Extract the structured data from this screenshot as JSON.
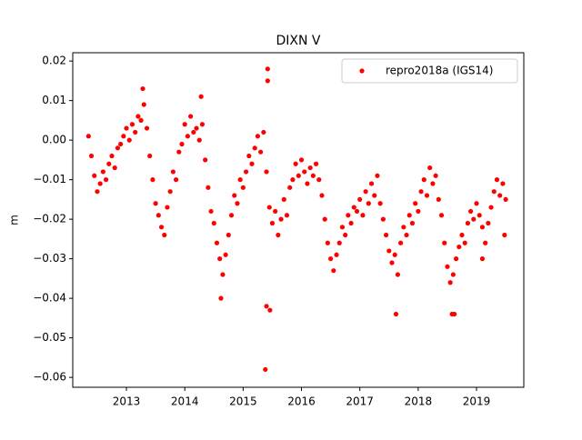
{
  "chart_data": {
    "type": "scatter",
    "title": "DIXN V",
    "y_label": "m",
    "legend": "upper right",
    "xlim": [
      2012.08,
      2019.81
    ],
    "xticks": [
      2013,
      2014,
      2015,
      2016,
      2017,
      2018,
      2019
    ],
    "ylim": [
      -0.0625,
      0.0221
    ],
    "yticks": [
      0.02,
      0.01,
      {
        "value": 0,
        "label": "0.00"
      },
      {
        "value": -0.01,
        "label": "−0.01"
      },
      {
        "value": -0.02,
        "label": "−0.02"
      },
      {
        "value": -0.03,
        "label": "−0.03"
      },
      {
        "value": -0.04,
        "label": "−0.04"
      },
      {
        "value": -0.05,
        "label": "−0.05"
      },
      {
        "value": -0.06,
        "label": "−0.06"
      }
    ],
    "series": [
      {
        "name": "repro2018a (IGS14)",
        "color": "#ff0000",
        "x": [
          2012.35,
          2012.4,
          2012.45,
          2012.5,
          2012.55,
          2012.6,
          2012.65,
          2012.7,
          2012.75,
          2012.8,
          2012.85,
          2012.9,
          2012.95,
          2013.0,
          2013.05,
          2013.1,
          2013.15,
          2013.2,
          2013.25,
          2013.3,
          2013.35,
          2013.4,
          2013.45,
          2013.5,
          2013.55,
          2013.6,
          2013.65,
          2013.7,
          2013.75,
          2013.8,
          2013.85,
          2013.9,
          2013.95,
          2014.0,
          2014.05,
          2014.1,
          2014.15,
          2014.2,
          2014.25,
          2014.3,
          2014.35,
          2014.4,
          2014.45,
          2014.5,
          2014.55,
          2014.6,
          2014.65,
          2014.7,
          2014.75,
          2014.8,
          2014.85,
          2014.9,
          2014.95,
          2015.0,
          2015.05,
          2015.1,
          2015.15,
          2015.2,
          2015.25,
          2015.3,
          2015.35,
          2015.4,
          2015.45,
          2015.5,
          2015.55,
          2015.6,
          2015.65,
          2015.7,
          2015.75,
          2015.8,
          2015.85,
          2015.9,
          2015.95,
          2016.0,
          2016.05,
          2016.1,
          2016.15,
          2016.2,
          2016.25,
          2016.3,
          2016.35,
          2016.4,
          2016.45,
          2016.5,
          2016.55,
          2016.6,
          2016.65,
          2016.7,
          2016.75,
          2016.8,
          2016.85,
          2016.9,
          2016.95,
          2017.0,
          2017.05,
          2017.1,
          2017.15,
          2017.2,
          2017.25,
          2017.3,
          2017.35,
          2017.4,
          2017.45,
          2017.5,
          2017.55,
          2017.6,
          2017.65,
          2017.7,
          2017.75,
          2017.8,
          2017.85,
          2017.9,
          2017.95,
          2018.0,
          2018.05,
          2018.1,
          2018.15,
          2018.2,
          2018.25,
          2018.3,
          2018.35,
          2018.4,
          2018.45,
          2018.5,
          2018.55,
          2018.6,
          2018.65,
          2018.7,
          2018.75,
          2018.8,
          2018.85,
          2018.9,
          2018.95,
          2019.0,
          2019.05,
          2019.1,
          2019.15,
          2019.2,
          2019.25,
          2019.3,
          2019.35,
          2019.4,
          2019.45,
          2019.5,
          2013.28,
          2014.28,
          2015.42,
          2015.42,
          2015.38,
          2015.4,
          2015.46,
          2014.62,
          2017.62,
          2018.58,
          2018.62,
          2019.1,
          2019.48
        ],
        "values": [
          0.001,
          -0.004,
          -0.009,
          -0.013,
          -0.011,
          -0.008,
          -0.01,
          -0.006,
          -0.004,
          -0.007,
          -0.002,
          -0.001,
          0.001,
          0.003,
          0.0,
          0.004,
          0.002,
          0.006,
          0.005,
          0.009,
          0.003,
          -0.004,
          -0.01,
          -0.016,
          -0.019,
          -0.022,
          -0.024,
          -0.017,
          -0.013,
          -0.008,
          -0.01,
          -0.003,
          -0.001,
          0.004,
          0.001,
          0.006,
          0.002,
          0.003,
          0.0,
          0.004,
          -0.005,
          -0.012,
          -0.018,
          -0.021,
          -0.026,
          -0.03,
          -0.034,
          -0.029,
          -0.024,
          -0.019,
          -0.014,
          -0.016,
          -0.01,
          -0.012,
          -0.008,
          -0.004,
          -0.006,
          -0.002,
          0.001,
          -0.003,
          0.002,
          -0.008,
          -0.017,
          -0.021,
          -0.018,
          -0.024,
          -0.02,
          -0.015,
          -0.019,
          -0.012,
          -0.01,
          -0.006,
          -0.009,
          -0.005,
          -0.008,
          -0.011,
          -0.007,
          -0.009,
          -0.006,
          -0.01,
          -0.014,
          -0.02,
          -0.026,
          -0.03,
          -0.033,
          -0.029,
          -0.026,
          -0.022,
          -0.024,
          -0.019,
          -0.021,
          -0.017,
          -0.018,
          -0.015,
          -0.019,
          -0.013,
          -0.016,
          -0.011,
          -0.014,
          -0.009,
          -0.016,
          -0.02,
          -0.024,
          -0.028,
          -0.031,
          -0.029,
          -0.034,
          -0.026,
          -0.022,
          -0.024,
          -0.019,
          -0.021,
          -0.016,
          -0.018,
          -0.013,
          -0.01,
          -0.014,
          -0.007,
          -0.011,
          -0.009,
          -0.015,
          -0.019,
          -0.026,
          -0.032,
          -0.036,
          -0.034,
          -0.03,
          -0.027,
          -0.024,
          -0.026,
          -0.021,
          -0.018,
          -0.02,
          -0.016,
          -0.019,
          -0.022,
          -0.026,
          -0.021,
          -0.017,
          -0.013,
          -0.01,
          -0.014,
          -0.011,
          -0.015,
          0.013,
          0.011,
          0.018,
          0.015,
          -0.058,
          -0.042,
          -0.043,
          -0.04,
          -0.044,
          -0.044,
          -0.044,
          -0.03,
          -0.024
        ]
      }
    ]
  }
}
